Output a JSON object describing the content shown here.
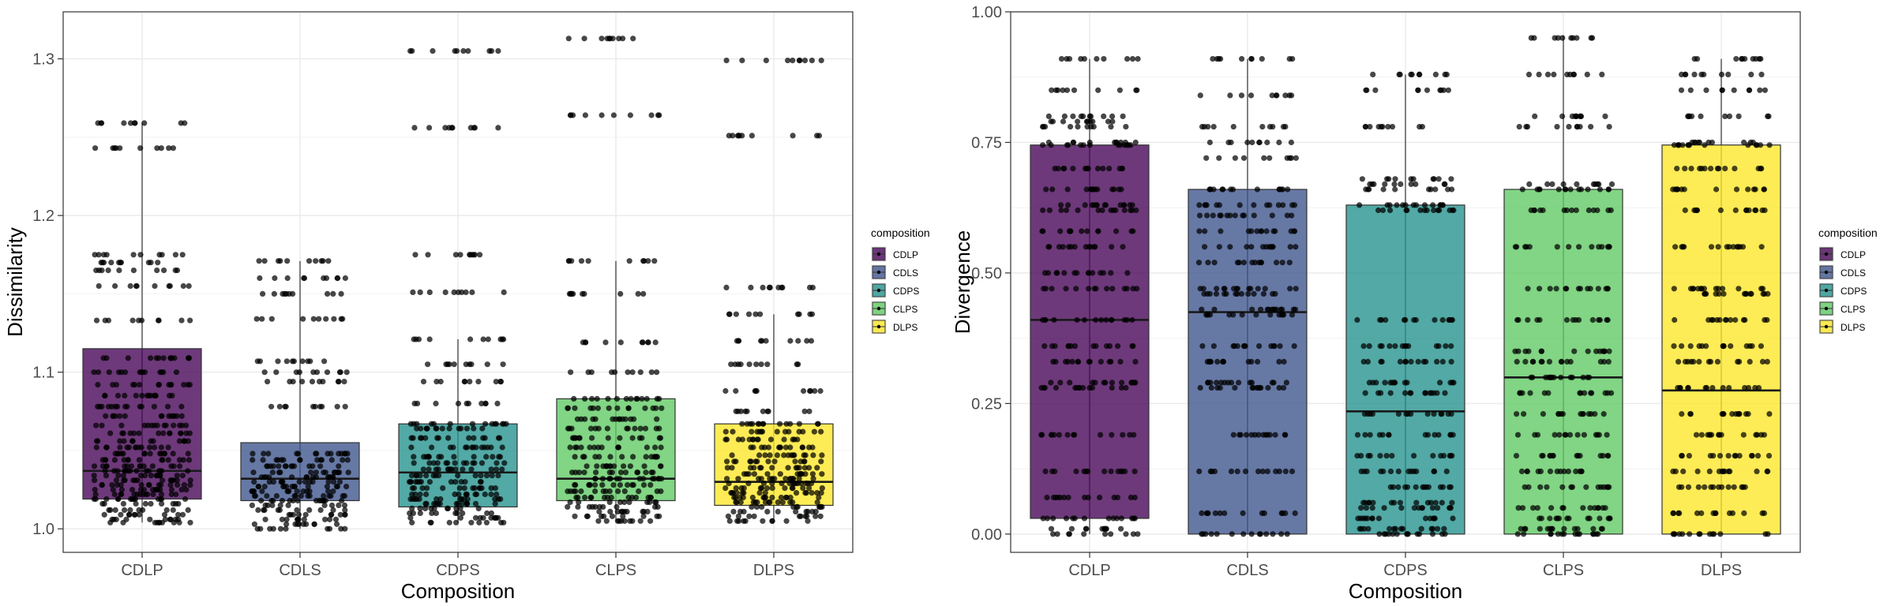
{
  "chart_data": [
    {
      "type": "boxplot",
      "xlabel": "Composition",
      "ylabel": "Dissimilarity",
      "ylim": [
        0.985,
        1.33
      ],
      "yticks": [
        "1.0",
        "1.1",
        "1.2",
        "1.3"
      ],
      "ytick_values": [
        1.0,
        1.1,
        1.2,
        1.3
      ],
      "categories": [
        "CDLP",
        "CDLS",
        "CDPS",
        "CLPS",
        "DLPS"
      ],
      "legend": {
        "title": "composition",
        "entries": [
          "CDLP",
          "CDLS",
          "CDPS",
          "CLPS",
          "DLPS"
        ],
        "position": "right"
      },
      "grid": true,
      "boxes": [
        {
          "category": "CDLP",
          "whisker_low": 1.004,
          "q1": 1.019,
          "median": 1.037,
          "q3": 1.115,
          "whisker_high": 1.259,
          "point_levels": [
            1.004,
            1.006,
            1.009,
            1.012,
            1.016,
            1.019,
            1.022,
            1.025,
            1.028,
            1.031,
            1.034,
            1.037,
            1.04,
            1.044,
            1.048,
            1.052,
            1.056,
            1.061,
            1.066,
            1.072,
            1.078,
            1.085,
            1.092,
            1.1,
            1.109,
            1.133,
            1.155,
            1.165,
            1.17,
            1.175,
            1.243,
            1.259
          ]
        },
        {
          "category": "CDLS",
          "whisker_low": 1.0,
          "q1": 1.018,
          "median": 1.032,
          "q3": 1.055,
          "whisker_high": 1.171,
          "point_levels": [
            1.0,
            1.003,
            1.006,
            1.009,
            1.012,
            1.015,
            1.018,
            1.021,
            1.024,
            1.027,
            1.03,
            1.033,
            1.036,
            1.04,
            1.044,
            1.048,
            1.078,
            1.094,
            1.1,
            1.107,
            1.134,
            1.15,
            1.16,
            1.171
          ]
        },
        {
          "category": "CDPS",
          "whisker_low": 1.004,
          "q1": 1.014,
          "median": 1.036,
          "q3": 1.067,
          "whisker_high": 1.121,
          "point_levels": [
            1.004,
            1.007,
            1.01,
            1.013,
            1.016,
            1.019,
            1.022,
            1.026,
            1.03,
            1.034,
            1.038,
            1.042,
            1.046,
            1.052,
            1.058,
            1.064,
            1.067,
            1.08,
            1.094,
            1.105,
            1.121,
            1.151,
            1.175,
            1.256,
            1.305
          ]
        },
        {
          "category": "CLPS",
          "whisker_low": 1.005,
          "q1": 1.018,
          "median": 1.032,
          "q3": 1.083,
          "whisker_high": 1.171,
          "point_levels": [
            1.005,
            1.008,
            1.011,
            1.014,
            1.017,
            1.02,
            1.024,
            1.028,
            1.032,
            1.036,
            1.04,
            1.046,
            1.052,
            1.058,
            1.064,
            1.07,
            1.077,
            1.083,
            1.1,
            1.119,
            1.15,
            1.171,
            1.264,
            1.313
          ]
        },
        {
          "category": "DLPS",
          "whisker_low": 1.005,
          "q1": 1.015,
          "median": 1.03,
          "q3": 1.067,
          "whisker_high": 1.137,
          "point_levels": [
            1.005,
            1.008,
            1.011,
            1.014,
            1.017,
            1.02,
            1.023,
            1.026,
            1.029,
            1.032,
            1.035,
            1.039,
            1.043,
            1.047,
            1.052,
            1.057,
            1.062,
            1.067,
            1.075,
            1.088,
            1.105,
            1.12,
            1.137,
            1.154,
            1.251,
            1.299
          ]
        }
      ]
    },
    {
      "type": "boxplot",
      "xlabel": "Composition",
      "ylabel": "Divergence",
      "ylim": [
        -0.035,
        1.0
      ],
      "yticks": [
        "0.00",
        "0.25",
        "0.50",
        "0.75",
        "1.00"
      ],
      "ytick_values": [
        0.0,
        0.25,
        0.5,
        0.75,
        1.0
      ],
      "categories": [
        "CDLP",
        "CDLS",
        "CDPS",
        "CLPS",
        "DLPS"
      ],
      "legend": {
        "title": "composition",
        "entries": [
          "CDLP",
          "CDLS",
          "CDPS",
          "CLPS",
          "DLPS"
        ],
        "position": "right"
      },
      "grid": true,
      "boxes": [
        {
          "category": "CDLP",
          "whisker_low": 0.0,
          "q1": 0.03,
          "median": 0.41,
          "q3": 0.745,
          "whisker_high": 0.91,
          "point_levels": [
            0.0,
            0.01,
            0.03,
            0.07,
            0.12,
            0.19,
            0.28,
            0.29,
            0.33,
            0.36,
            0.41,
            0.47,
            0.5,
            0.55,
            0.58,
            0.62,
            0.63,
            0.66,
            0.7,
            0.745,
            0.75,
            0.78,
            0.79,
            0.8,
            0.85,
            0.91
          ]
        },
        {
          "category": "CDLS",
          "whisker_low": 0.0,
          "q1": 0.0,
          "median": 0.425,
          "q3": 0.66,
          "whisker_high": 0.91,
          "point_levels": [
            0.0,
            0.04,
            0.12,
            0.19,
            0.28,
            0.29,
            0.33,
            0.36,
            0.42,
            0.43,
            0.46,
            0.47,
            0.52,
            0.55,
            0.58,
            0.61,
            0.63,
            0.66,
            0.72,
            0.75,
            0.78,
            0.84,
            0.91
          ]
        },
        {
          "category": "CDPS",
          "whisker_low": 0.0,
          "q1": 0.0,
          "median": 0.235,
          "q3": 0.63,
          "whisker_high": 0.88,
          "point_levels": [
            0.0,
            0.01,
            0.03,
            0.05,
            0.06,
            0.09,
            0.12,
            0.15,
            0.19,
            0.23,
            0.27,
            0.29,
            0.33,
            0.36,
            0.41,
            0.62,
            0.63,
            0.66,
            0.67,
            0.68,
            0.78,
            0.85,
            0.88
          ]
        },
        {
          "category": "CLPS",
          "whisker_low": 0.0,
          "q1": 0.0,
          "median": 0.3,
          "q3": 0.66,
          "whisker_high": 0.955,
          "point_levels": [
            0.0,
            0.01,
            0.03,
            0.05,
            0.09,
            0.12,
            0.15,
            0.19,
            0.23,
            0.27,
            0.3,
            0.33,
            0.35,
            0.41,
            0.47,
            0.55,
            0.62,
            0.66,
            0.67,
            0.78,
            0.8,
            0.88,
            0.95
          ]
        },
        {
          "category": "DLPS",
          "whisker_low": 0.0,
          "q1": 0.0,
          "median": 0.275,
          "q3": 0.745,
          "whisker_high": 0.91,
          "point_levels": [
            0.0,
            0.04,
            0.09,
            0.12,
            0.15,
            0.19,
            0.23,
            0.28,
            0.33,
            0.36,
            0.41,
            0.46,
            0.47,
            0.55,
            0.62,
            0.66,
            0.7,
            0.745,
            0.75,
            0.8,
            0.85,
            0.88,
            0.91
          ]
        }
      ]
    }
  ],
  "colors": {
    "fills": [
      "#440154",
      "#3b528b",
      "#21918c",
      "#5ec962",
      "#fde725"
    ],
    "points": "#000000",
    "grid": "#ebebeb",
    "panel_border": "#333333"
  }
}
